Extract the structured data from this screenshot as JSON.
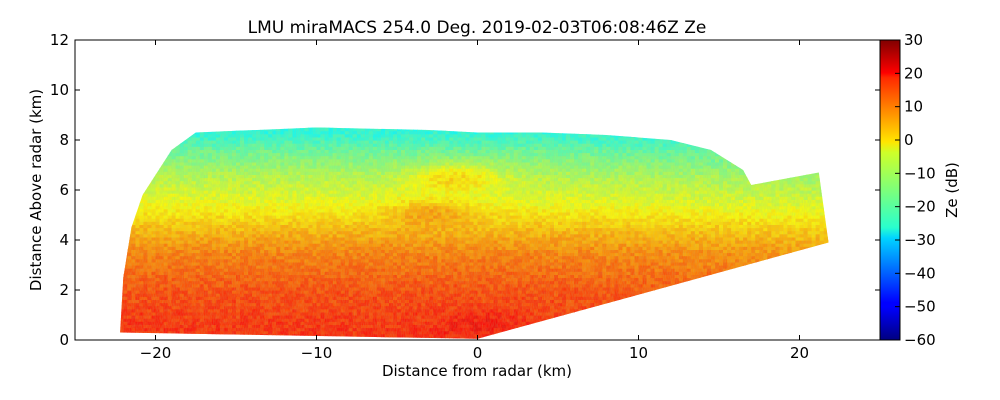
{
  "chart_data": {
    "type": "heatmap",
    "title": "LMU miraMACS 254.0 Deg. 2019-02-03T06:08:46Z  Ze",
    "xlabel": "Distance from radar (km)",
    "ylabel": "Distance Above radar  (km)",
    "xlim": [
      -25,
      25
    ],
    "ylim": [
      0,
      12
    ],
    "xticks": [
      -20,
      -10,
      0,
      10,
      20
    ],
    "xtick_labels": [
      "−20",
      "−10",
      "0",
      "10",
      "20"
    ],
    "yticks": [
      0,
      2,
      4,
      6,
      8,
      10,
      12
    ],
    "ytick_labels": [
      "0",
      "2",
      "4",
      "6",
      "8",
      "10",
      "12"
    ],
    "colorbar": {
      "label": "Ze (dB)",
      "range": [
        -60,
        30
      ],
      "colormap": "jet",
      "ticks": [
        30,
        20,
        10,
        0,
        -10,
        -20,
        -30,
        -40,
        -50,
        -60
      ],
      "tick_labels": [
        "30",
        "20",
        "10",
        "0",
        "−10",
        "−20",
        "−30",
        "−40",
        "−50",
        "−60"
      ]
    },
    "echo_region": {
      "description_points_km": [
        [
          -22.2,
          0.3
        ],
        [
          -22,
          2.5
        ],
        [
          -21.5,
          4.5
        ],
        [
          -20.8,
          5.8
        ],
        [
          -19,
          7.6
        ],
        [
          -17.5,
          8.3
        ],
        [
          -10,
          8.5
        ],
        [
          -3,
          8.4
        ],
        [
          0,
          8.3
        ],
        [
          4,
          8.3
        ],
        [
          8,
          8.2
        ],
        [
          12,
          8.0
        ],
        [
          14.5,
          7.6
        ],
        [
          16.5,
          6.8
        ],
        [
          17,
          6.2
        ],
        [
          21.2,
          6.7
        ],
        [
          21.8,
          3.9
        ],
        [
          0,
          0.05
        ]
      ],
      "levels_dB": [
        {
          "height_km": 0.5,
          "ze": 16
        },
        {
          "height_km": 2.0,
          "ze": 13
        },
        {
          "height_km": 3.5,
          "ze": 8
        },
        {
          "height_km": 4.5,
          "ze": 2
        },
        {
          "height_km": 5.5,
          "ze": -5
        },
        {
          "height_km": 6.5,
          "ze": -10
        },
        {
          "height_km": 7.5,
          "ze": -17
        },
        {
          "height_km": 8.3,
          "ze": -24
        }
      ],
      "features": [
        {
          "name": "near-radar core",
          "x_km": 0,
          "y_km": 0.6,
          "ze": 20
        },
        {
          "name": "elevated band",
          "x_km": -3,
          "y_km": 5.0,
          "ze": 8
        },
        {
          "name": "upper band",
          "x_km": -1.5,
          "y_km": 6.4,
          "ze": 4
        }
      ]
    }
  }
}
